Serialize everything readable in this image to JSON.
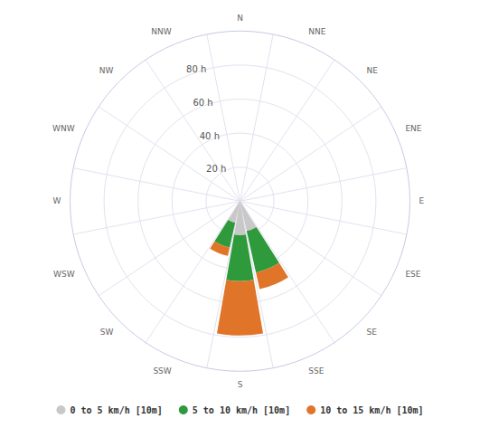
{
  "chart_data": {
    "type": "windrose",
    "categories": [
      "N",
      "NNE",
      "NE",
      "ENE",
      "E",
      "ESE",
      "SE",
      "SSE",
      "S",
      "SSW",
      "SW",
      "WSW",
      "W",
      "WNW",
      "NW",
      "NNW"
    ],
    "series": [
      {
        "name": "0 to 5 km/h [10m]",
        "color": "#c8c8c8",
        "values": [
          0,
          0,
          0,
          0,
          0,
          0,
          0,
          18,
          20,
          13,
          0,
          0,
          0,
          0,
          0,
          0
        ]
      },
      {
        "name": "5 to 10 km/h [10m]",
        "color": "#2e9a3c",
        "values": [
          0,
          0,
          0,
          0,
          0,
          0,
          0,
          25,
          27,
          15,
          0,
          0,
          0,
          0,
          0,
          0
        ]
      },
      {
        "name": "10 to 15 km/h [10m]",
        "color": "#e0752a",
        "values": [
          0,
          0,
          0,
          0,
          0,
          0,
          0,
          10,
          32,
          5,
          0,
          0,
          0,
          0,
          0,
          0
        ]
      }
    ],
    "ylim": [
      0,
      100
    ],
    "yticks": [
      {
        "value": 20,
        "label": "20 h"
      },
      {
        "value": 40,
        "label": "40 h"
      },
      {
        "value": 60,
        "label": "60 h"
      },
      {
        "value": 80,
        "label": "80 h"
      }
    ],
    "stacked": true,
    "legend": "bottom",
    "grid": true
  }
}
